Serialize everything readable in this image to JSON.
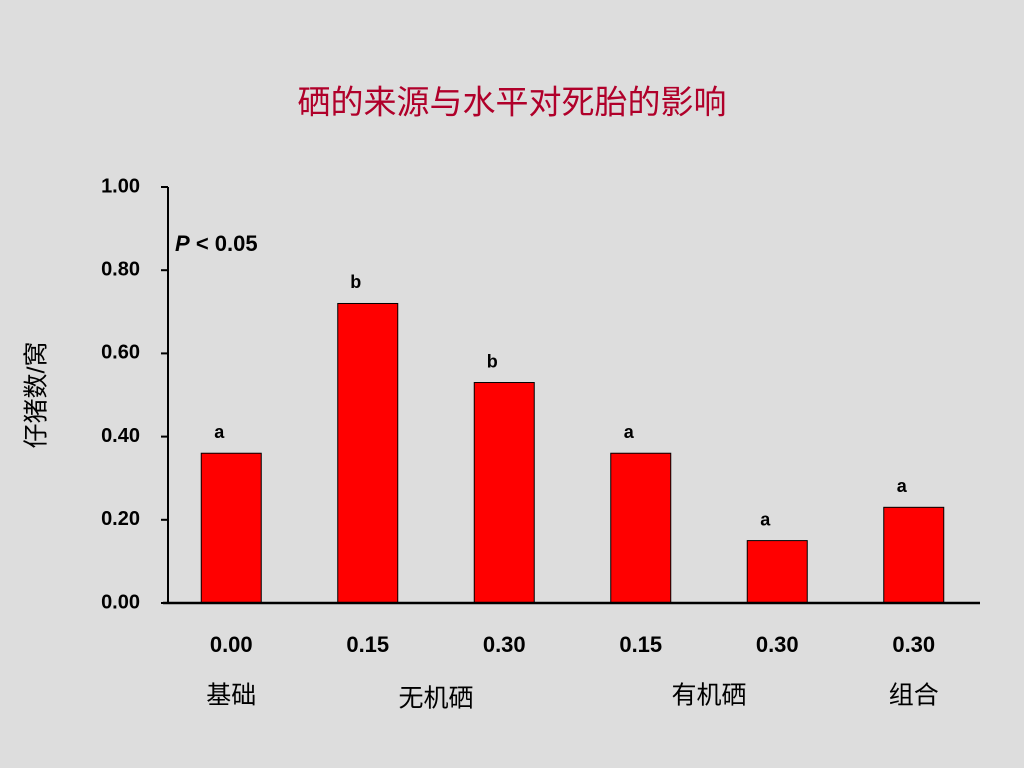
{
  "chart_data": {
    "type": "bar",
    "title": "硒的来源与水平对死胎的影响",
    "y_label": "仔猪数/窝",
    "annotation": {
      "variable": "P",
      "text": "< 0.05"
    },
    "categories": [
      "0.00",
      "0.15",
      "0.30",
      "0.15",
      "0.30",
      "0.30"
    ],
    "groups": [
      {
        "label": "基础",
        "count": 1
      },
      {
        "label": "无机硒",
        "count": 2
      },
      {
        "label": "有机硒",
        "count": 2
      },
      {
        "label": "组合",
        "count": 1
      }
    ],
    "values": [
      0.36,
      0.72,
      0.53,
      0.36,
      0.15,
      0.23
    ],
    "significance": [
      "a",
      "b",
      "b",
      "a",
      "a",
      "a"
    ],
    "color": "#ff0000",
    "title_color": "#b0002a",
    "ylim": [
      0,
      1
    ],
    "yticks": [
      {
        "value": 0,
        "label": "0.00"
      },
      {
        "value": 0.2,
        "label": "0.20"
      },
      {
        "value": 0.4,
        "label": "0.40"
      },
      {
        "value": 0.6,
        "label": "0.60"
      },
      {
        "value": 0.8,
        "label": "0.80"
      },
      {
        "value": 1,
        "label": "1.00"
      }
    ],
    "grid": false
  }
}
